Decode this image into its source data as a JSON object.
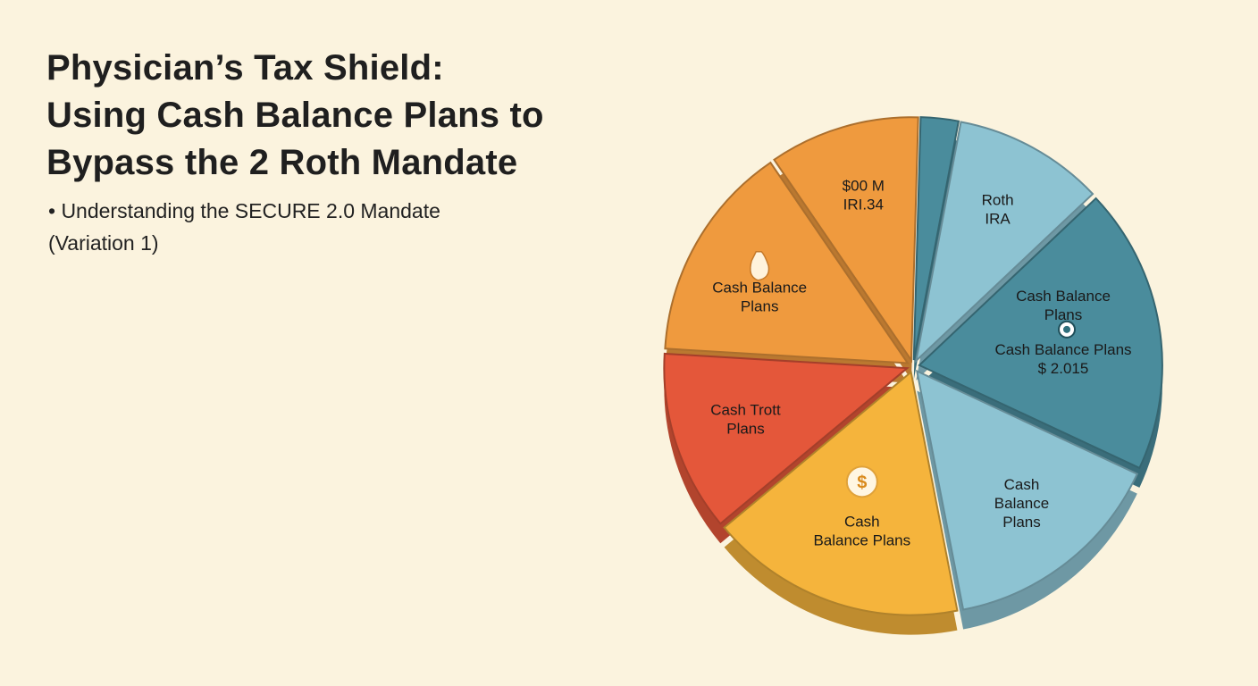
{
  "title_lines": [
    "Physician’s Tax Shield:",
    "Using Cash Balance Plans to",
    "Bypass the 2 Roth Mandate"
  ],
  "subtitle_lines": [
    "• Understanding the SECURE 2.0 Mandate",
    "(Variation 1)"
  ],
  "colors": {
    "background": "#fbf3de",
    "dark_teal": "#4a8c9c",
    "light_blue": "#8dc3d2",
    "orange": "#ef9a3e",
    "red_orange": "#e4573a",
    "yellow": "#f5b43c"
  },
  "chart_data": {
    "type": "pie",
    "exploded": true,
    "slices": [
      {
        "label_lines": [
          "$00 M",
          "IRI.34"
        ],
        "value": 10,
        "color": "#ef9a3e",
        "icon": ""
      },
      {
        "label_lines": [],
        "value": 2.5,
        "color": "#4a8c9c",
        "icon": ""
      },
      {
        "label_lines": [
          "Roth",
          "IRA"
        ],
        "value": 10,
        "color": "#8dc3d2",
        "icon": ""
      },
      {
        "label_lines": [
          "Cash Balance",
          "Plans",
          "Cash Balance Plans",
          "$ 2.015"
        ],
        "value": 19,
        "color": "#4a8c9c",
        "icon": "piggy-bank-icon"
      },
      {
        "label_lines": [
          "Cash",
          "Balance",
          "Plans"
        ],
        "value": 15,
        "color": "#8dc3d2",
        "icon": ""
      },
      {
        "label_lines": [
          "Cash",
          "Balance Plans"
        ],
        "value": 17,
        "color": "#f5b43c",
        "icon": "dollar-coin-icon"
      },
      {
        "label_lines": [
          "Cash Trott",
          "Plans"
        ],
        "value": 12,
        "color": "#e4573a",
        "icon": ""
      },
      {
        "label_lines": [
          "Cash Balance",
          "Plans"
        ],
        "value": 14.5,
        "color": "#ef9a3e",
        "icon": "money-bag-icon"
      }
    ]
  }
}
